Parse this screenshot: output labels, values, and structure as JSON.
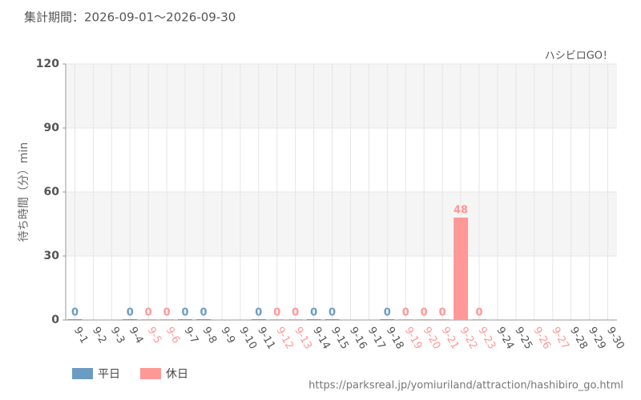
{
  "chart_data": {
    "type": "bar",
    "title": "集計期間：2026-09-01〜2026-09-30",
    "watermark": "ハシビロGO！",
    "y_label": "待ち時間（分）min",
    "source": "https://parksreal.jp/yomiuriland/attraction/hashibiro_go.html",
    "categories": [
      "9-1",
      "9-2",
      "9-3",
      "9-4",
      "9-5",
      "9-6",
      "9-7",
      "9-8",
      "9-9",
      "9-10",
      "9-11",
      "9-12",
      "9-13",
      "9-14",
      "9-15",
      "9-16",
      "9-17",
      "9-18",
      "9-19",
      "9-20",
      "9-21",
      "9-22",
      "9-23",
      "9-24",
      "9-25",
      "9-26",
      "9-27",
      "9-28",
      "9-29",
      "9-30"
    ],
    "category_series": [
      0,
      0,
      0,
      0,
      1,
      1,
      0,
      0,
      0,
      0,
      0,
      1,
      1,
      0,
      0,
      0,
      0,
      0,
      1,
      1,
      1,
      1,
      1,
      0,
      0,
      1,
      1,
      0,
      0,
      0
    ],
    "series": [
      {
        "name": "平日",
        "color": "#6b9bc3",
        "values": [
          0,
          null,
          null,
          0,
          null,
          null,
          0,
          0,
          null,
          null,
          0,
          null,
          null,
          0,
          0,
          null,
          null,
          0,
          null,
          null,
          null,
          null,
          null,
          null,
          null,
          null,
          null,
          null,
          null,
          null
        ]
      },
      {
        "name": "休日",
        "color": "#ff9896",
        "values": [
          null,
          null,
          null,
          null,
          0,
          0,
          null,
          null,
          null,
          null,
          null,
          0,
          0,
          null,
          null,
          null,
          null,
          null,
          0,
          0,
          0,
          48,
          0,
          null,
          null,
          null,
          null,
          null,
          null,
          null
        ]
      }
    ],
    "ylim": [
      0,
      120
    ],
    "yticks": [
      0,
      30,
      60,
      90,
      120
    ],
    "grid": true
  }
}
